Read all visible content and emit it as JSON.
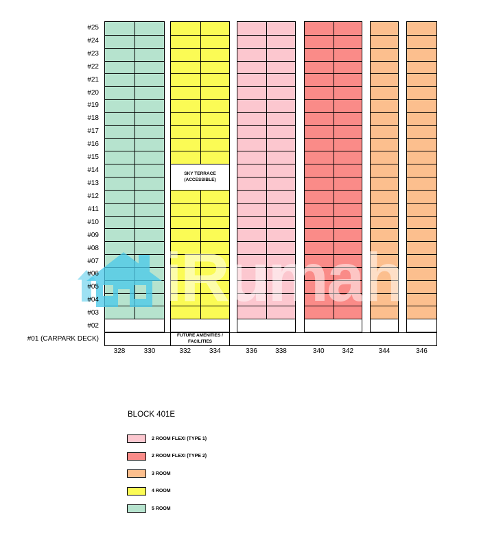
{
  "watermark": {
    "brand_text": "iRumah",
    "house_color": "#4CC9E9",
    "text_color": "rgba(255,255,255,0.5)"
  },
  "chart_data": {
    "type": "table",
    "title": "BLOCK 401E",
    "floor_axis": [
      "#25",
      "#24",
      "#23",
      "#22",
      "#21",
      "#20",
      "#19",
      "#18",
      "#17",
      "#16",
      "#15",
      "#14",
      "#13",
      "#12",
      "#11",
      "#10",
      "#09",
      "#08",
      "#07",
      "#06",
      "#05",
      "#04",
      "#03",
      "#02"
    ],
    "carpark_row_label": "#01 (CARPARK DECK)",
    "colored_floor_range": {
      "top": "#25",
      "bottom": "#03"
    },
    "empty_floors": [
      "#02"
    ],
    "unit_groups": [
      {
        "units": [
          "328",
          "330"
        ],
        "room_type": "5 ROOM",
        "color": "#B6E3CE"
      },
      {
        "units": [
          "332",
          "334"
        ],
        "room_type": "4 ROOM",
        "color": "#FBFB55",
        "merged_cell": {
          "floors": [
            "#14",
            "#13"
          ],
          "lines": [
            "SKY TERRACE",
            "(ACCESSIBLE)"
          ]
        }
      },
      {
        "units": [
          "336",
          "338"
        ],
        "room_type": "2 ROOM FLEXI (TYPE 1)",
        "color": "#FCC7CF"
      },
      {
        "units": [
          "340",
          "342"
        ],
        "room_type": "2 ROOM FLEXI (TYPE 2)",
        "color": "#FA8B88"
      },
      {
        "units": [
          "344"
        ],
        "room_type": "3 ROOM",
        "color": "#FCBF8E"
      },
      {
        "units": [
          "346"
        ],
        "room_type": "3 ROOM",
        "color": "#FCBF8E"
      }
    ],
    "first_floor_sections": [
      {
        "label_lines": []
      },
      {
        "label_lines": [
          "FUTURE AMENITIES /",
          "FACILITIES"
        ]
      },
      {
        "label_lines": []
      }
    ],
    "legend": {
      "items": [
        {
          "label": "2 ROOM FLEXI (TYPE 1)",
          "color": "#FCC7CF"
        },
        {
          "label": "2 ROOM FLEXI (TYPE 2)",
          "color": "#FA8B88"
        },
        {
          "label": "3 ROOM",
          "color": "#FCBF8E"
        },
        {
          "label": "4 ROOM",
          "color": "#FBFB55"
        },
        {
          "label": "5 ROOM",
          "color": "#B6E3CE"
        }
      ]
    }
  }
}
